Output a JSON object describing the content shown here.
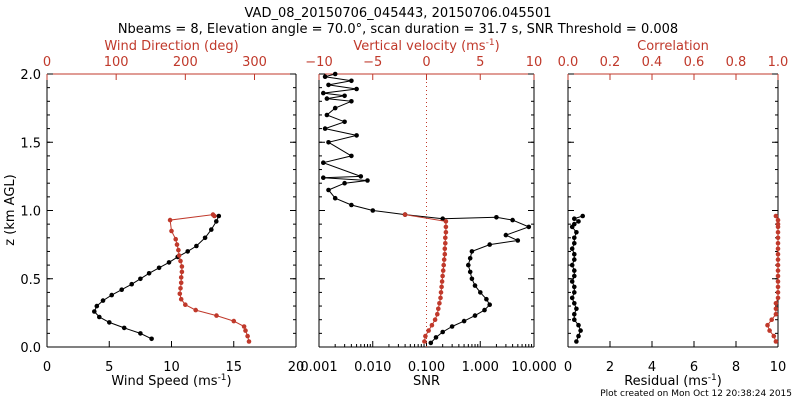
{
  "title_line1": "VAD_08_20150706_045443, 20150706.045501",
  "title_line2": "Nbeams = 8, Elevation angle = 70.0°, scan duration = 31.7 s, SNR Threshold = 0.008",
  "credit": "Plot created on Mon Oct 12 20:38:24 2015",
  "colors": {
    "black": "#000000",
    "red": "#c0392b"
  },
  "y_axis": {
    "label": "z (km AGL)",
    "range": [
      0.0,
      2.0
    ],
    "ticks": [
      "0.0",
      "0.5",
      "1.0",
      "1.5",
      "2.0"
    ],
    "tick_values": [
      0,
      0.5,
      1.0,
      1.5,
      2.0
    ]
  },
  "chart_data": [
    {
      "type": "line",
      "panel": "left",
      "xlabel": "Wind Speed (ms",
      "xlabel_sup": "-1",
      "xlabel_end": ")",
      "xrange": [
        0,
        20
      ],
      "xticks": [
        "0",
        "5",
        "10",
        "15",
        "20"
      ],
      "xtick_values": [
        0,
        5,
        10,
        15,
        20
      ],
      "top_label": "Wind Direction (deg)",
      "top_range": [
        0,
        360
      ],
      "top_ticks": [
        "0",
        "100",
        "200",
        "300"
      ],
      "top_tick_values": [
        0,
        100,
        200,
        300
      ],
      "series": [
        {
          "name": "Wind Speed",
          "color": "#000000",
          "axis": "bottom",
          "x": [
            8.4,
            7.5,
            6.2,
            5.0,
            4.2,
            3.8,
            4.0,
            4.5,
            5.2,
            6.0,
            6.8,
            7.5,
            8.2,
            9.0,
            9.8,
            10.5,
            11.3,
            12.0,
            12.7,
            13.2,
            13.6,
            13.8
          ],
          "y": [
            0.06,
            0.1,
            0.14,
            0.18,
            0.22,
            0.26,
            0.3,
            0.34,
            0.38,
            0.42,
            0.46,
            0.5,
            0.54,
            0.58,
            0.62,
            0.66,
            0.7,
            0.74,
            0.8,
            0.86,
            0.92,
            0.96
          ]
        },
        {
          "name": "Wind Direction",
          "color": "#c0392b",
          "axis": "top",
          "x": [
            292,
            290,
            287,
            285,
            270,
            245,
            215,
            200,
            194,
            192,
            193,
            194,
            194,
            195,
            195,
            193,
            191,
            190,
            188,
            186,
            180,
            178,
            240,
            242
          ],
          "y": [
            0.04,
            0.08,
            0.12,
            0.15,
            0.19,
            0.23,
            0.27,
            0.31,
            0.35,
            0.39,
            0.43,
            0.47,
            0.51,
            0.55,
            0.59,
            0.63,
            0.67,
            0.71,
            0.75,
            0.79,
            0.85,
            0.93,
            0.97,
            0.96
          ]
        }
      ]
    },
    {
      "type": "line",
      "panel": "middle",
      "xlabel": "SNR",
      "xscale": "log",
      "xrange": [
        0.001,
        10.0
      ],
      "xticks": [
        "0.001",
        "0.010",
        "0.100",
        "1.000",
        "10.000"
      ],
      "xtick_values": [
        0.001,
        0.01,
        0.1,
        1.0,
        10.0
      ],
      "top_label": "Vertical velocity (ms",
      "top_label_sup": "-1",
      "top_label_end": ")",
      "top_range": [
        -10,
        10
      ],
      "top_ticks": [
        "−10",
        "−5",
        "0",
        "5",
        "10"
      ],
      "top_tick_values": [
        -10,
        -5,
        0,
        5,
        10
      ],
      "series": [
        {
          "name": "SNR",
          "color": "#000000",
          "axis": "bottom",
          "x": [
            0.12,
            0.15,
            0.2,
            0.3,
            0.5,
            0.8,
            1.2,
            1.5,
            1.3,
            1.0,
            0.8,
            0.7,
            0.65,
            0.6,
            0.65,
            0.7,
            1.5,
            5.0,
            3.0,
            8.0,
            4.0,
            2.0,
            0.2,
            0.04,
            0.01,
            0.004,
            0.002,
            0.0015,
            0.003,
            0.008,
            0.0012,
            0.006,
            0.0012,
            0.004,
            0.0015,
            0.005,
            0.0013,
            0.003,
            0.0014,
            0.002,
            0.004,
            0.0014,
            0.003,
            0.0012,
            0.005,
            0.0015,
            0.004,
            0.0013,
            0.002
          ],
          "y": [
            0.03,
            0.07,
            0.11,
            0.15,
            0.19,
            0.23,
            0.27,
            0.31,
            0.35,
            0.4,
            0.45,
            0.5,
            0.55,
            0.6,
            0.65,
            0.7,
            0.75,
            0.78,
            0.82,
            0.88,
            0.93,
            0.95,
            0.94,
            0.97,
            1.0,
            1.04,
            1.09,
            1.15,
            1.2,
            1.22,
            1.24,
            1.25,
            1.35,
            1.4,
            1.5,
            1.55,
            1.6,
            1.65,
            1.7,
            1.75,
            1.8,
            1.82,
            1.84,
            1.86,
            1.89,
            1.92,
            1.95,
            1.98,
            2.0
          ]
        },
        {
          "name": "Vertical velocity",
          "color": "#c0392b",
          "axis": "top",
          "x": [
            -0.2,
            -0.1,
            0.2,
            0.5,
            0.8,
            1.0,
            1.1,
            1.2,
            1.3,
            1.35,
            1.4,
            1.45,
            1.5,
            1.55,
            1.6,
            1.65,
            1.7,
            1.7,
            1.75,
            1.75,
            1.8,
            1.8,
            1.8,
            -2.0
          ],
          "y": [
            0.04,
            0.08,
            0.12,
            0.16,
            0.2,
            0.24,
            0.28,
            0.32,
            0.36,
            0.4,
            0.44,
            0.48,
            0.52,
            0.56,
            0.6,
            0.64,
            0.68,
            0.72,
            0.76,
            0.8,
            0.84,
            0.88,
            0.92,
            0.97
          ]
        },
        {
          "name": "Zero line",
          "color": "#c0392b",
          "axis": "top",
          "style": "dotted",
          "x": [
            0,
            0
          ],
          "y": [
            0.0,
            2.0
          ]
        }
      ]
    },
    {
      "type": "line",
      "panel": "right",
      "xlabel": "Residual (ms",
      "xlabel_sup": "-1",
      "xlabel_end": ")",
      "xrange": [
        0,
        10
      ],
      "xticks": [
        "0",
        "2",
        "4",
        "6",
        "8",
        "10"
      ],
      "xtick_values": [
        0,
        2,
        4,
        6,
        8,
        10
      ],
      "top_label": "Correlation",
      "top_range": [
        0.0,
        1.0
      ],
      "top_ticks": [
        "0.0",
        "0.2",
        "0.4",
        "0.6",
        "0.8",
        "1.0"
      ],
      "top_tick_values": [
        0.0,
        0.2,
        0.4,
        0.6,
        0.8,
        1.0
      ],
      "series": [
        {
          "name": "Residual",
          "color": "#000000",
          "axis": "bottom",
          "x": [
            0.4,
            0.5,
            0.6,
            0.5,
            0.3,
            0.3,
            0.4,
            0.3,
            0.2,
            0.3,
            0.3,
            0.2,
            0.3,
            0.3,
            0.2,
            0.3,
            0.3,
            0.2,
            0.3,
            0.3,
            0.4,
            0.2,
            0.3,
            0.5,
            0.3,
            0.7
          ],
          "y": [
            0.04,
            0.08,
            0.12,
            0.16,
            0.2,
            0.24,
            0.28,
            0.32,
            0.36,
            0.4,
            0.44,
            0.48,
            0.52,
            0.56,
            0.6,
            0.64,
            0.68,
            0.72,
            0.76,
            0.8,
            0.84,
            0.88,
            0.9,
            0.92,
            0.94,
            0.96
          ]
        },
        {
          "name": "Correlation",
          "color": "#c0392b",
          "axis": "top",
          "x": [
            0.99,
            0.98,
            0.96,
            0.95,
            0.97,
            0.99,
            0.99,
            0.99,
            1.0,
            1.0,
            1.0,
            1.0,
            1.0,
            1.0,
            1.0,
            1.0,
            1.0,
            1.0,
            1.0,
            1.0,
            1.0,
            1.0,
            1.0,
            1.0,
            0.99
          ],
          "y": [
            0.04,
            0.08,
            0.12,
            0.16,
            0.2,
            0.24,
            0.28,
            0.32,
            0.36,
            0.4,
            0.44,
            0.48,
            0.52,
            0.56,
            0.6,
            0.64,
            0.68,
            0.72,
            0.76,
            0.8,
            0.84,
            0.88,
            0.9,
            0.93,
            0.96
          ]
        }
      ]
    }
  ]
}
